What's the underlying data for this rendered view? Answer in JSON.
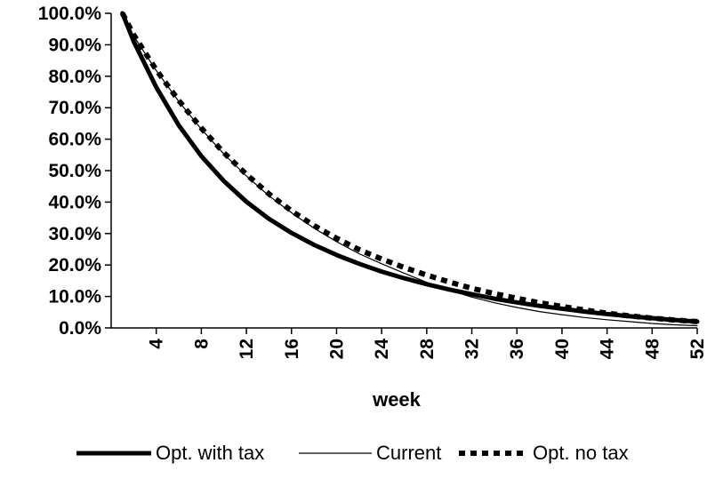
{
  "chart_data": {
    "type": "line",
    "title": "",
    "xlabel": "week",
    "ylabel": "",
    "xlim": [
      0,
      52
    ],
    "ylim": [
      0,
      100
    ],
    "y_ticks": [
      0,
      10,
      20,
      30,
      40,
      50,
      60,
      70,
      80,
      90,
      100
    ],
    "y_tick_labels": [
      "0.0%",
      "10.0%",
      "20.0%",
      "30.0%",
      "40.0%",
      "50.0%",
      "60.0%",
      "70.0%",
      "80.0%",
      "90.0%",
      "100.0%"
    ],
    "x_ticks": [
      4,
      8,
      12,
      16,
      20,
      24,
      28,
      32,
      36,
      40,
      44,
      48,
      52
    ],
    "x_tick_labels": [
      "4",
      "8",
      "12",
      "16",
      "20",
      "24",
      "28",
      "32",
      "36",
      "40",
      "44",
      "48",
      "52"
    ],
    "grid": false,
    "legend_position": "bottom",
    "x": [
      1,
      2,
      4,
      6,
      8,
      10,
      12,
      14,
      16,
      18,
      20,
      22,
      24,
      26,
      28,
      30,
      32,
      34,
      36,
      38,
      40,
      42,
      44,
      46,
      48,
      50,
      52
    ],
    "series": [
      {
        "name": "Opt. with tax",
        "style": "thick",
        "color": "#000000",
        "values": [
          100,
          91.1,
          76.5,
          64.4,
          54.6,
          46.7,
          40.1,
          34.7,
          30.2,
          26.4,
          23.2,
          20.4,
          17.9,
          15.8,
          13.9,
          12.2,
          10.7,
          9.3,
          8.1,
          7.0,
          6.1,
          5.2,
          4.4,
          3.7,
          3.1,
          2.5,
          2.0
        ]
      },
      {
        "name": "Current",
        "style": "thin",
        "color": "#000000",
        "values": [
          100,
          92.8,
          81.8,
          72.0,
          63.2,
          55.3,
          48.3,
          42.0,
          36.6,
          31.7,
          27.4,
          23.6,
          20.4,
          17.4,
          14.5,
          12.0,
          9.8,
          8.0,
          6.5,
          5.2,
          4.2,
          3.3,
          2.6,
          2.0,
          1.4,
          1.0,
          0.7
        ]
      },
      {
        "name": "Opt. no tax",
        "style": "dashed",
        "color": "#000000",
        "values": [
          100,
          93.2,
          82.0,
          72.3,
          63.5,
          55.7,
          48.8,
          42.6,
          37.2,
          32.5,
          28.5,
          24.9,
          21.9,
          19.2,
          16.8,
          14.6,
          12.6,
          10.9,
          9.4,
          8.0,
          6.8,
          5.7,
          4.7,
          3.8,
          3.1,
          2.5,
          2.0
        ]
      }
    ]
  }
}
